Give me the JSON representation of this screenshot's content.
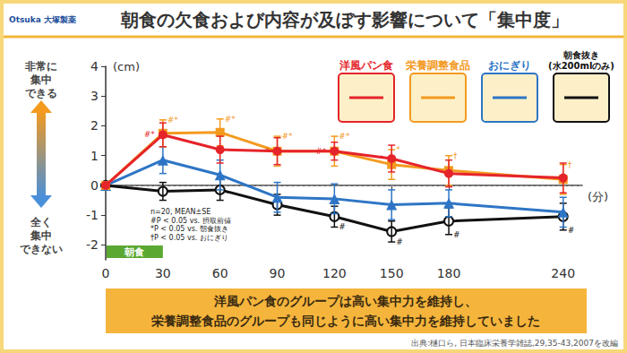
{
  "header": {
    "title": "朝食の欠食および内容が及ぼす影響について「集中度」",
    "logo": "Otsuka 大塚製薬"
  },
  "chart_data": {
    "type": "line",
    "x": [
      0,
      30,
      60,
      90,
      120,
      150,
      180,
      240
    ],
    "xlim": [
      0,
      250
    ],
    "xticks": [
      0,
      30,
      60,
      90,
      120,
      150,
      180,
      240
    ],
    "x_unit": "(分)",
    "ylim": [
      -2.5,
      4
    ],
    "yticks": [
      -2,
      -1,
      0,
      1,
      2,
      3,
      4
    ],
    "y_unit": "(cm)",
    "y_top_label": "非常に\n集中\nできる",
    "y_bottom_label": "全く\n集中\nできない",
    "grid": false,
    "legend": "top-right",
    "hlines": [
      0
    ],
    "period": {
      "label": "朝食",
      "x": [
        0,
        30
      ]
    },
    "notes": [
      "n=20, MEAN±SE",
      "#P < 0.05 vs. 摂取前値",
      "*P < 0.05 vs. 朝食抜き",
      "†P < 0.05 vs. おにぎり"
    ],
    "series": [
      {
        "name": "洋風パン食",
        "color": "#e5242a",
        "marker": "circle",
        "values": [
          0,
          1.7,
          1.2,
          1.15,
          1.15,
          0.9,
          0.4,
          0.25
        ],
        "errors": [
          0,
          0.4,
          0.45,
          0.45,
          0.3,
          0.45,
          0.45,
          0.5
        ],
        "marks": [
          null,
          "#*",
          null,
          "*",
          "#*",
          "*",
          null,
          null
        ]
      },
      {
        "name": "栄養調整食品",
        "color": "#f39a1f",
        "marker": "square",
        "values": [
          0,
          1.75,
          1.78,
          1.15,
          1.15,
          0.7,
          0.5,
          0.2
        ],
        "errors": [
          0,
          0.45,
          0.45,
          0.5,
          0.5,
          0.5,
          0.5,
          0.5
        ],
        "marks": [
          null,
          "#*",
          "#*",
          "#*",
          "#*",
          "*",
          "†",
          "†"
        ]
      },
      {
        "name": "おにぎり",
        "color": "#2e75c5",
        "marker": "triangle",
        "values": [
          0,
          0.85,
          0.35,
          -0.4,
          -0.45,
          -0.65,
          -0.6,
          -0.9
        ],
        "errors": [
          0,
          0.45,
          0.5,
          0.5,
          0.5,
          0.5,
          0.45,
          0.5
        ],
        "marks": [
          null,
          null,
          null,
          null,
          null,
          null,
          null,
          null
        ]
      },
      {
        "name": "朝食抜き(水200mlのみ)",
        "color": "#111111",
        "marker": "hollow_circle",
        "values": [
          0,
          -0.2,
          -0.15,
          -0.65,
          -1.05,
          -1.55,
          -1.2,
          -1.05
        ],
        "errors": [
          0,
          0.3,
          0.35,
          0.35,
          0.35,
          0.35,
          0.45,
          0.45
        ],
        "marks": [
          null,
          null,
          null,
          null,
          "#",
          "#",
          "#",
          "#"
        ]
      }
    ]
  },
  "caption": [
    "洋風パン食のグループは高い集中力を維持し、",
    "栄養調整食品のグループも同じように高い集中力を維持していました"
  ],
  "source": "出典:樋口ら, 日本臨床栄養学雑誌,29,35-43,2007を改編"
}
